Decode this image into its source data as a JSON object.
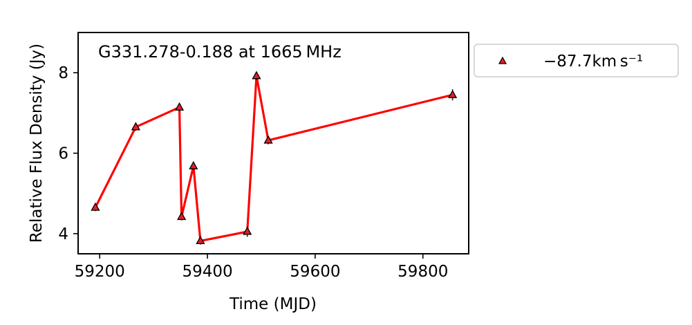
{
  "chart_data": {
    "type": "line",
    "title": "",
    "annotation": "G331.278-0.188 at 1665 MHz",
    "xlabel": "Time (MJD)",
    "ylabel": "Relative Flux Density (Jy)",
    "xlim": [
      59160,
      59885
    ],
    "ylim": [
      3.5,
      9.0
    ],
    "xticks": [
      59200,
      59400,
      59600,
      59800
    ],
    "yticks": [
      4,
      6,
      8
    ],
    "grid": false,
    "legend_position": "outside-right-top",
    "series": [
      {
        "name": "−87.7km s⁻¹",
        "line_color": "#ff0000",
        "marker": "triangle",
        "marker_face": "#e0202a",
        "marker_edge": "#000000",
        "points": [
          {
            "x": 59192,
            "y": 4.65,
            "err": 0.09
          },
          {
            "x": 59267,
            "y": 6.65,
            "err": 0.09
          },
          {
            "x": 59348,
            "y": 7.14,
            "err": 0.1
          },
          {
            "x": 59352,
            "y": 4.42,
            "err": 0.09
          },
          {
            "x": 59374,
            "y": 5.68,
            "err": 0.1
          },
          {
            "x": 59387,
            "y": 3.82,
            "err": 0.09
          },
          {
            "x": 59474,
            "y": 4.05,
            "err": 0.13
          },
          {
            "x": 59491,
            "y": 7.92,
            "err": 0.1
          },
          {
            "x": 59513,
            "y": 6.32,
            "err": 0.1
          },
          {
            "x": 59855,
            "y": 7.45,
            "err": 0.14
          }
        ]
      }
    ]
  }
}
